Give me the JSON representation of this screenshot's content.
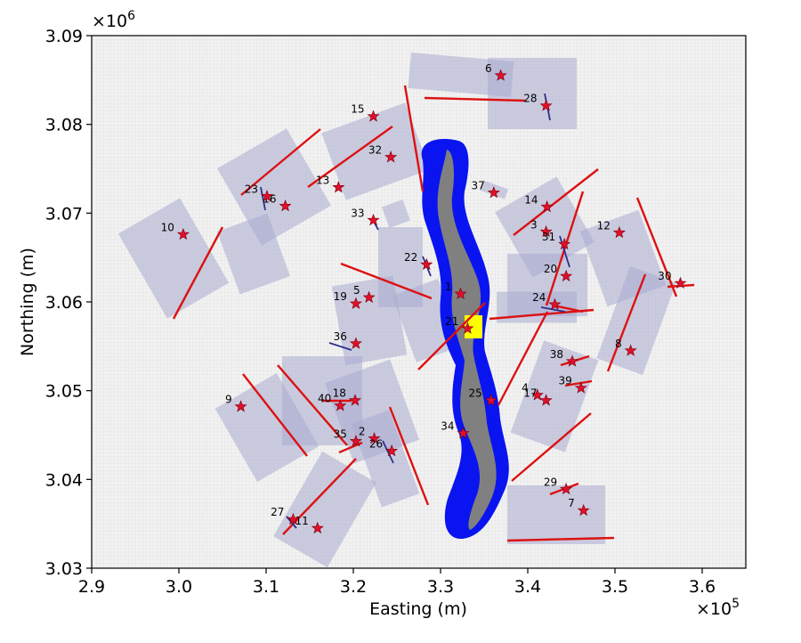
{
  "chart_data": {
    "type": "scatter",
    "title": "",
    "xlabel": "Easting (m)",
    "ylabel": "Northing (m)",
    "x_multiplier_label": "×10",
    "x_multiplier_exp": "5",
    "y_multiplier_label": "×10",
    "y_multiplier_exp": "6",
    "xlim": [
      2.9,
      3.65
    ],
    "ylim": [
      3.03,
      3.09
    ],
    "xticks": [
      2.9,
      3.0,
      3.1,
      3.2,
      3.3,
      3.4,
      3.5,
      3.6
    ],
    "xtick_labels": [
      "2.9",
      "3.0",
      "3.1",
      "3.2",
      "3.3",
      "3.4",
      "3.5",
      "3.6"
    ],
    "yticks": [
      3.03,
      3.04,
      3.05,
      3.06,
      3.07,
      3.08,
      3.09
    ],
    "ytick_labels": [
      "3.03",
      "3.04",
      "3.05",
      "3.06",
      "3.07",
      "3.08",
      "3.09"
    ],
    "marker_color": "#e0102a",
    "fault_color": "#dd1111",
    "river_outer_color": "#0a14f0",
    "river_inner_color": "#808080",
    "highlight_color": "#ffff00",
    "patch_color": "#a9acd0",
    "points": [
      {
        "id": "1",
        "x": 3.323,
        "y": 3.0609
      },
      {
        "id": "2",
        "x": 3.224,
        "y": 3.0446
      },
      {
        "id": "3",
        "x": 3.421,
        "y": 3.0679
      },
      {
        "id": "4",
        "x": 3.411,
        "y": 3.0495
      },
      {
        "id": "5",
        "x": 3.218,
        "y": 3.0605
      },
      {
        "id": "6",
        "x": 3.369,
        "y": 3.0855
      },
      {
        "id": "7",
        "x": 3.464,
        "y": 3.0365
      },
      {
        "id": "8",
        "x": 3.518,
        "y": 3.0545
      },
      {
        "id": "9",
        "x": 3.071,
        "y": 3.0482
      },
      {
        "id": "10",
        "x": 3.005,
        "y": 3.0676
      },
      {
        "id": "11",
        "x": 3.159,
        "y": 3.0345
      },
      {
        "id": "12",
        "x": 3.505,
        "y": 3.0678
      },
      {
        "id": "13",
        "x": 3.183,
        "y": 3.0729
      },
      {
        "id": "14",
        "x": 3.422,
        "y": 3.0707
      },
      {
        "id": "15",
        "x": 3.223,
        "y": 3.0809
      },
      {
        "id": "16",
        "x": 3.122,
        "y": 3.0708
      },
      {
        "id": "17",
        "x": 3.421,
        "y": 3.0489
      },
      {
        "id": "18",
        "x": 3.202,
        "y": 3.0489
      },
      {
        "id": "19",
        "x": 3.203,
        "y": 3.0598
      },
      {
        "id": "20",
        "x": 3.444,
        "y": 3.0629
      },
      {
        "id": "21",
        "x": 3.331,
        "y": 3.057
      },
      {
        "id": "22",
        "x": 3.284,
        "y": 3.0642
      },
      {
        "id": "23",
        "x": 3.101,
        "y": 3.0719
      },
      {
        "id": "24",
        "x": 3.431,
        "y": 3.0597
      },
      {
        "id": "25",
        "x": 3.358,
        "y": 3.0489
      },
      {
        "id": "26",
        "x": 3.244,
        "y": 3.0432
      },
      {
        "id": "27",
        "x": 3.131,
        "y": 3.0355
      },
      {
        "id": "28",
        "x": 3.421,
        "y": 3.0821
      },
      {
        "id": "29",
        "x": 3.444,
        "y": 3.0389
      },
      {
        "id": "30",
        "x": 3.575,
        "y": 3.0621
      },
      {
        "id": "31",
        "x": 3.442,
        "y": 3.0665
      },
      {
        "id": "32",
        "x": 3.243,
        "y": 3.0763
      },
      {
        "id": "33",
        "x": 3.223,
        "y": 3.0692
      },
      {
        "id": "34",
        "x": 3.326,
        "y": 3.0452
      },
      {
        "id": "35",
        "x": 3.203,
        "y": 3.0443
      },
      {
        "id": "36",
        "x": 3.203,
        "y": 3.0553
      },
      {
        "id": "37",
        "x": 3.361,
        "y": 3.0723
      },
      {
        "id": "38",
        "x": 3.451,
        "y": 3.0533
      },
      {
        "id": "39",
        "x": 3.461,
        "y": 3.0503
      },
      {
        "id": "40",
        "x": 3.185,
        "y": 3.0483
      }
    ]
  }
}
